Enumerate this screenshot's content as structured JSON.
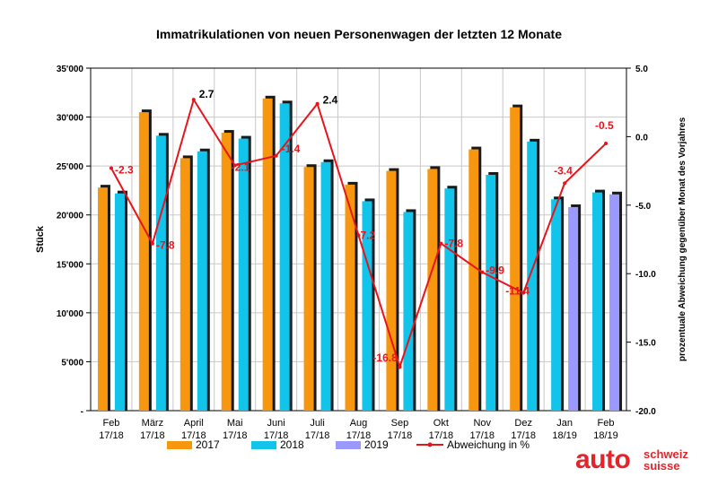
{
  "chart_data": {
    "type": "bar",
    "title": "Immatrikulationen von neuen Personenwagen der letzten 12 Monate",
    "ylabel": "Stück",
    "y2label": "prozentuale Abweichung gegenüber Monat des Vorjahres",
    "ylim": [
      0,
      35000
    ],
    "y2lim": [
      -20,
      5
    ],
    "yticks": [
      "-",
      "5'000",
      "10'000",
      "15'000",
      "20'000",
      "25'000",
      "30'000",
      "35'000"
    ],
    "y2ticks": [
      "-20.0",
      "-15.0",
      "-10.0",
      "-5.0",
      "0.0",
      "5.0"
    ],
    "categories": [
      [
        "Feb",
        "17/18"
      ],
      [
        "März",
        "17/18"
      ],
      [
        "April",
        "17/18"
      ],
      [
        "Mai",
        "17/18"
      ],
      [
        "Juni",
        "17/18"
      ],
      [
        "Juli",
        "17/18"
      ],
      [
        "Aug",
        "17/18"
      ],
      [
        "Sep",
        "17/18"
      ],
      [
        "Okt",
        "17/18"
      ],
      [
        "Nov",
        "17/18"
      ],
      [
        "Dez",
        "17/18"
      ],
      [
        "Jan",
        "18/19"
      ],
      [
        "Feb",
        "18/19"
      ]
    ],
    "series": [
      {
        "name": "2017",
        "color": "#f7970f",
        "values": [
          22800,
          30500,
          25800,
          28400,
          31900,
          24900,
          23100,
          24500,
          24700,
          26700,
          31000,
          null,
          null
        ]
      },
      {
        "name": "2018",
        "color": "#13c4ea",
        "values": [
          22200,
          28100,
          26500,
          27800,
          31400,
          25400,
          21400,
          20300,
          22700,
          24100,
          27500,
          21600,
          22300
        ]
      },
      {
        "name": "2019",
        "color": "#9999ff",
        "values": [
          null,
          null,
          null,
          null,
          null,
          null,
          null,
          null,
          null,
          null,
          null,
          20800,
          22100
        ]
      }
    ],
    "line": {
      "name": "Abweichung in %",
      "color": "#e8141c",
      "values": [
        -2.3,
        -7.8,
        2.7,
        -2.1,
        -1.4,
        2.4,
        -7.2,
        -16.8,
        -7.8,
        -9.9,
        -11.4,
        -3.4,
        -0.5
      ],
      "labels": [
        "-2.3",
        "-7.8",
        "2.7",
        "-2.1",
        "-1.4",
        "2.4",
        "-7.2",
        "-16.8",
        "-7.8",
        "-9.9",
        "-11.4",
        "-3.4",
        "-0.5"
      ]
    }
  },
  "logo": {
    "main": "auto",
    "line1": "schweiz",
    "line2": "suisse"
  }
}
